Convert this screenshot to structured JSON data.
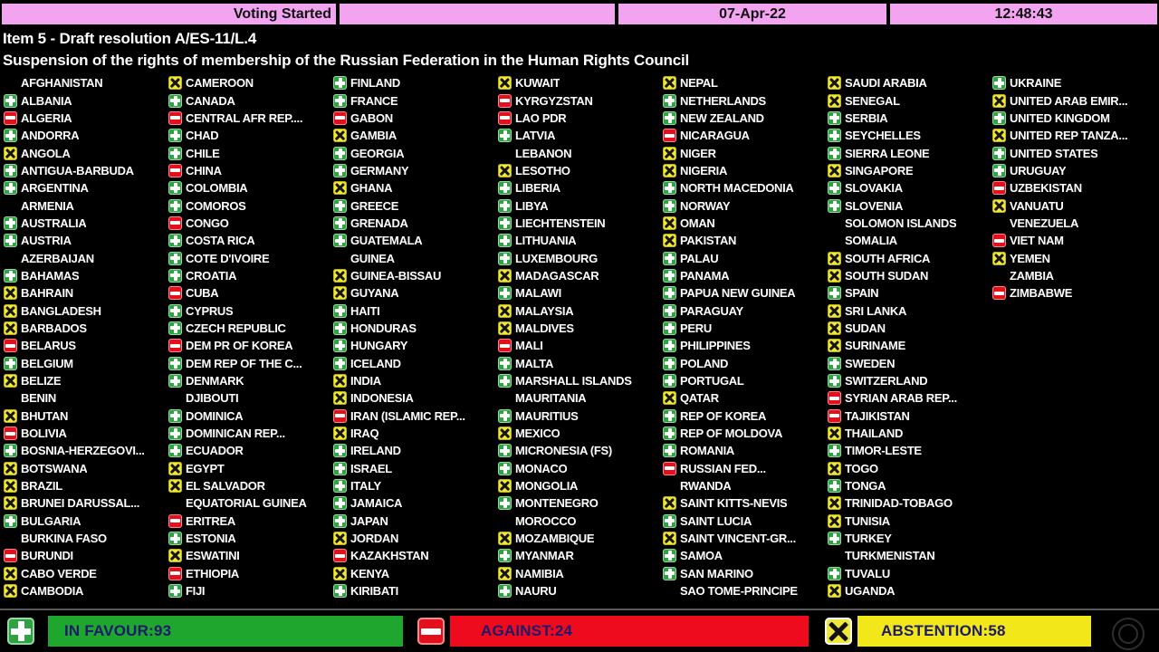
{
  "top_bar": {
    "status": "Voting Started",
    "date": "07-Apr-22",
    "time": "12:48:43"
  },
  "title": {
    "line1": "Item 5 - Draft resolution A/ES-11/L.4",
    "line2": "Suspension of the rights of membership of the Russian Federation in the Human Rights Council"
  },
  "vote_codes": {
    "Y": "in favour",
    "N": "against",
    "A": "abstention",
    "": "not voting"
  },
  "colors": {
    "topbar_pink": "#f2a4f0",
    "favour_green": "#2fa344",
    "against_red": "#e40f1d",
    "abstain_yellow": "#efe73a",
    "footer_text_navy": "#1c1a6b",
    "background": "#000000",
    "country_text": "#ffffff"
  },
  "columns": [
    [
      {
        "n": "AFGHANISTAN",
        "v": ""
      },
      {
        "n": "ALBANIA",
        "v": "Y"
      },
      {
        "n": "ALGERIA",
        "v": "N"
      },
      {
        "n": "ANDORRA",
        "v": "Y"
      },
      {
        "n": "ANGOLA",
        "v": "A"
      },
      {
        "n": "ANTIGUA-BARBUDA",
        "v": "Y"
      },
      {
        "n": "ARGENTINA",
        "v": "Y"
      },
      {
        "n": "ARMENIA",
        "v": ""
      },
      {
        "n": "AUSTRALIA",
        "v": "Y"
      },
      {
        "n": "AUSTRIA",
        "v": "Y"
      },
      {
        "n": "AZERBAIJAN",
        "v": ""
      },
      {
        "n": "BAHAMAS",
        "v": "Y"
      },
      {
        "n": "BAHRAIN",
        "v": "A"
      },
      {
        "n": "BANGLADESH",
        "v": "A"
      },
      {
        "n": "BARBADOS",
        "v": "A"
      },
      {
        "n": "BELARUS",
        "v": "N"
      },
      {
        "n": "BELGIUM",
        "v": "Y"
      },
      {
        "n": "BELIZE",
        "v": "A"
      },
      {
        "n": "BENIN",
        "v": ""
      },
      {
        "n": "BHUTAN",
        "v": "A"
      },
      {
        "n": "BOLIVIA",
        "v": "N"
      },
      {
        "n": "BOSNIA-HERZEGOVI...",
        "v": "Y"
      },
      {
        "n": "BOTSWANA",
        "v": "A"
      },
      {
        "n": "BRAZIL",
        "v": "A"
      },
      {
        "n": "BRUNEI DARUSSAL...",
        "v": "A"
      },
      {
        "n": "BULGARIA",
        "v": "Y"
      },
      {
        "n": "BURKINA FASO",
        "v": ""
      },
      {
        "n": "BURUNDI",
        "v": "N"
      },
      {
        "n": "CABO VERDE",
        "v": "A"
      },
      {
        "n": "CAMBODIA",
        "v": "A"
      }
    ],
    [
      {
        "n": "CAMEROON",
        "v": "A"
      },
      {
        "n": "CANADA",
        "v": "Y"
      },
      {
        "n": "CENTRAL AFR REP....",
        "v": "N"
      },
      {
        "n": "CHAD",
        "v": "Y"
      },
      {
        "n": "CHILE",
        "v": "Y"
      },
      {
        "n": "CHINA",
        "v": "N"
      },
      {
        "n": "COLOMBIA",
        "v": "Y"
      },
      {
        "n": "COMOROS",
        "v": "Y"
      },
      {
        "n": "CONGO",
        "v": "N"
      },
      {
        "n": "COSTA RICA",
        "v": "Y"
      },
      {
        "n": "COTE D'IVOIRE",
        "v": "Y"
      },
      {
        "n": "CROATIA",
        "v": "Y"
      },
      {
        "n": "CUBA",
        "v": "N"
      },
      {
        "n": "CYPRUS",
        "v": "Y"
      },
      {
        "n": "CZECH REPUBLIC",
        "v": "Y"
      },
      {
        "n": "DEM PR OF KOREA",
        "v": "N"
      },
      {
        "n": "DEM REP OF THE C...",
        "v": "Y"
      },
      {
        "n": "DENMARK",
        "v": "Y"
      },
      {
        "n": "DJIBOUTI",
        "v": ""
      },
      {
        "n": "DOMINICA",
        "v": "Y"
      },
      {
        "n": "DOMINICAN REP...",
        "v": "Y"
      },
      {
        "n": "ECUADOR",
        "v": "Y"
      },
      {
        "n": "EGYPT",
        "v": "A"
      },
      {
        "n": "EL SALVADOR",
        "v": "A"
      },
      {
        "n": "EQUATORIAL GUINEA",
        "v": ""
      },
      {
        "n": "ERITREA",
        "v": "N"
      },
      {
        "n": "ESTONIA",
        "v": "Y"
      },
      {
        "n": "ESWATINI",
        "v": "A"
      },
      {
        "n": "ETHIOPIA",
        "v": "N"
      },
      {
        "n": "FIJI",
        "v": "Y"
      }
    ],
    [
      {
        "n": "FINLAND",
        "v": "Y"
      },
      {
        "n": "FRANCE",
        "v": "Y"
      },
      {
        "n": "GABON",
        "v": "N"
      },
      {
        "n": "GAMBIA",
        "v": "A"
      },
      {
        "n": "GEORGIA",
        "v": "Y"
      },
      {
        "n": "GERMANY",
        "v": "Y"
      },
      {
        "n": "GHANA",
        "v": "A"
      },
      {
        "n": "GREECE",
        "v": "Y"
      },
      {
        "n": "GRENADA",
        "v": "Y"
      },
      {
        "n": "GUATEMALA",
        "v": "Y"
      },
      {
        "n": "GUINEA",
        "v": ""
      },
      {
        "n": "GUINEA-BISSAU",
        "v": "A"
      },
      {
        "n": "GUYANA",
        "v": "A"
      },
      {
        "n": "HAITI",
        "v": "Y"
      },
      {
        "n": "HONDURAS",
        "v": "Y"
      },
      {
        "n": "HUNGARY",
        "v": "Y"
      },
      {
        "n": "ICELAND",
        "v": "Y"
      },
      {
        "n": "INDIA",
        "v": "A"
      },
      {
        "n": "INDONESIA",
        "v": "A"
      },
      {
        "n": "IRAN (ISLAMIC REP...",
        "v": "N"
      },
      {
        "n": "IRAQ",
        "v": "A"
      },
      {
        "n": "IRELAND",
        "v": "Y"
      },
      {
        "n": "ISRAEL",
        "v": "Y"
      },
      {
        "n": "ITALY",
        "v": "Y"
      },
      {
        "n": "JAMAICA",
        "v": "Y"
      },
      {
        "n": "JAPAN",
        "v": "Y"
      },
      {
        "n": "JORDAN",
        "v": "A"
      },
      {
        "n": "KAZAKHSTAN",
        "v": "N"
      },
      {
        "n": "KENYA",
        "v": "A"
      },
      {
        "n": "KIRIBATI",
        "v": "Y"
      }
    ],
    [
      {
        "n": "KUWAIT",
        "v": "A"
      },
      {
        "n": "KYRGYZSTAN",
        "v": "N"
      },
      {
        "n": "LAO PDR",
        "v": "N"
      },
      {
        "n": "LATVIA",
        "v": "Y"
      },
      {
        "n": "LEBANON",
        "v": ""
      },
      {
        "n": "LESOTHO",
        "v": "A"
      },
      {
        "n": "LIBERIA",
        "v": "Y"
      },
      {
        "n": "LIBYA",
        "v": "Y"
      },
      {
        "n": "LIECHTENSTEIN",
        "v": "Y"
      },
      {
        "n": "LITHUANIA",
        "v": "Y"
      },
      {
        "n": "LUXEMBOURG",
        "v": "Y"
      },
      {
        "n": "MADAGASCAR",
        "v": "A"
      },
      {
        "n": "MALAWI",
        "v": "Y"
      },
      {
        "n": "MALAYSIA",
        "v": "A"
      },
      {
        "n": "MALDIVES",
        "v": "A"
      },
      {
        "n": "MALI",
        "v": "N"
      },
      {
        "n": "MALTA",
        "v": "Y"
      },
      {
        "n": "MARSHALL ISLANDS",
        "v": "Y"
      },
      {
        "n": "MAURITANIA",
        "v": ""
      },
      {
        "n": "MAURITIUS",
        "v": "Y"
      },
      {
        "n": "MEXICO",
        "v": "A"
      },
      {
        "n": "MICRONESIA (FS)",
        "v": "Y"
      },
      {
        "n": "MONACO",
        "v": "Y"
      },
      {
        "n": "MONGOLIA",
        "v": "A"
      },
      {
        "n": "MONTENEGRO",
        "v": "Y"
      },
      {
        "n": "MOROCCO",
        "v": ""
      },
      {
        "n": "MOZAMBIQUE",
        "v": "A"
      },
      {
        "n": "MYANMAR",
        "v": "Y"
      },
      {
        "n": "NAMIBIA",
        "v": "A"
      },
      {
        "n": "NAURU",
        "v": "Y"
      }
    ],
    [
      {
        "n": "NEPAL",
        "v": "A"
      },
      {
        "n": "NETHERLANDS",
        "v": "Y"
      },
      {
        "n": "NEW ZEALAND",
        "v": "Y"
      },
      {
        "n": "NICARAGUA",
        "v": "N"
      },
      {
        "n": "NIGER",
        "v": "A"
      },
      {
        "n": "NIGERIA",
        "v": "A"
      },
      {
        "n": "NORTH MACEDONIA",
        "v": "Y"
      },
      {
        "n": "NORWAY",
        "v": "Y"
      },
      {
        "n": "OMAN",
        "v": "A"
      },
      {
        "n": "PAKISTAN",
        "v": "A"
      },
      {
        "n": "PALAU",
        "v": "Y"
      },
      {
        "n": "PANAMA",
        "v": "Y"
      },
      {
        "n": "PAPUA NEW GUINEA",
        "v": "Y"
      },
      {
        "n": "PARAGUAY",
        "v": "Y"
      },
      {
        "n": "PERU",
        "v": "Y"
      },
      {
        "n": "PHILIPPINES",
        "v": "Y"
      },
      {
        "n": "POLAND",
        "v": "Y"
      },
      {
        "n": "PORTUGAL",
        "v": "Y"
      },
      {
        "n": "QATAR",
        "v": "A"
      },
      {
        "n": "REP OF KOREA",
        "v": "Y"
      },
      {
        "n": "REP OF MOLDOVA",
        "v": "Y"
      },
      {
        "n": "ROMANIA",
        "v": "Y"
      },
      {
        "n": "RUSSIAN FED...",
        "v": "N"
      },
      {
        "n": "RWANDA",
        "v": ""
      },
      {
        "n": "SAINT KITTS-NEVIS",
        "v": "A"
      },
      {
        "n": "SAINT LUCIA",
        "v": "Y"
      },
      {
        "n": "SAINT VINCENT-GR...",
        "v": "A"
      },
      {
        "n": "SAMOA",
        "v": "Y"
      },
      {
        "n": "SAN MARINO",
        "v": "Y"
      },
      {
        "n": "SAO TOME-PRINCIPE",
        "v": ""
      }
    ],
    [
      {
        "n": "SAUDI ARABIA",
        "v": "A"
      },
      {
        "n": "SENEGAL",
        "v": "A"
      },
      {
        "n": "SERBIA",
        "v": "Y"
      },
      {
        "n": "SEYCHELLES",
        "v": "Y"
      },
      {
        "n": "SIERRA LEONE",
        "v": "Y"
      },
      {
        "n": "SINGAPORE",
        "v": "A"
      },
      {
        "n": "SLOVAKIA",
        "v": "Y"
      },
      {
        "n": "SLOVENIA",
        "v": "Y"
      },
      {
        "n": "SOLOMON ISLANDS",
        "v": ""
      },
      {
        "n": "SOMALIA",
        "v": ""
      },
      {
        "n": "SOUTH AFRICA",
        "v": "A"
      },
      {
        "n": "SOUTH SUDAN",
        "v": "A"
      },
      {
        "n": "SPAIN",
        "v": "Y"
      },
      {
        "n": "SRI LANKA",
        "v": "A"
      },
      {
        "n": "SUDAN",
        "v": "A"
      },
      {
        "n": "SURINAME",
        "v": "A"
      },
      {
        "n": "SWEDEN",
        "v": "Y"
      },
      {
        "n": "SWITZERLAND",
        "v": "Y"
      },
      {
        "n": "SYRIAN ARAB REP...",
        "v": "N"
      },
      {
        "n": "TAJIKISTAN",
        "v": "N"
      },
      {
        "n": "THAILAND",
        "v": "A"
      },
      {
        "n": "TIMOR-LESTE",
        "v": "Y"
      },
      {
        "n": "TOGO",
        "v": "A"
      },
      {
        "n": "TONGA",
        "v": "Y"
      },
      {
        "n": "TRINIDAD-TOBAGO",
        "v": "A"
      },
      {
        "n": "TUNISIA",
        "v": "A"
      },
      {
        "n": "TURKEY",
        "v": "Y"
      },
      {
        "n": "TURKMENISTAN",
        "v": ""
      },
      {
        "n": "TUVALU",
        "v": "Y"
      },
      {
        "n": "UGANDA",
        "v": "A"
      }
    ],
    [
      {
        "n": "UKRAINE",
        "v": "Y"
      },
      {
        "n": "UNITED ARAB EMIR...",
        "v": "A"
      },
      {
        "n": "UNITED KINGDOM",
        "v": "Y"
      },
      {
        "n": "UNITED REP TANZA...",
        "v": "A"
      },
      {
        "n": "UNITED STATES",
        "v": "Y"
      },
      {
        "n": "URUGUAY",
        "v": "Y"
      },
      {
        "n": "UZBEKISTAN",
        "v": "N"
      },
      {
        "n": "VANUATU",
        "v": "A"
      },
      {
        "n": "VENEZUELA",
        "v": ""
      },
      {
        "n": "VIET NAM",
        "v": "N"
      },
      {
        "n": "YEMEN",
        "v": "A"
      },
      {
        "n": "ZAMBIA",
        "v": ""
      },
      {
        "n": "ZIMBABWE",
        "v": "N"
      }
    ]
  ],
  "footer": {
    "in_favour_display": "IN FAVOUR:93",
    "against_display": "AGAINST:24",
    "abstention_display": "ABSTENTION:58"
  }
}
